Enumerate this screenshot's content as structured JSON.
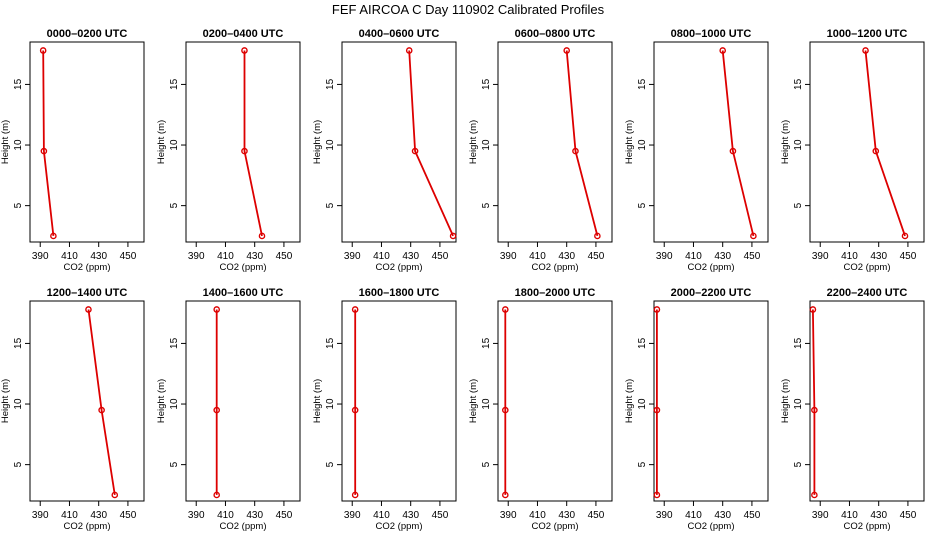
{
  "title": "FEF AIRCOA C  Day 110902  Calibrated Profiles",
  "chart_data": {
    "type": "line",
    "title": "FEF AIRCOA C  Day 110902  Calibrated Profiles",
    "xlabel": "CO2 (ppm)",
    "ylabel": "Height (m)",
    "xlim": [
      383,
      461
    ],
    "ylim": [
      2,
      18.5
    ],
    "xticks": [
      390,
      410,
      430,
      450
    ],
    "yticks": [
      5,
      10,
      15
    ],
    "line_color": "#dd0000",
    "grid": false,
    "panels": [
      {
        "title": "0000–0200 UTC",
        "points": [
          {
            "x": 392,
            "y": 17.8
          },
          {
            "x": 392.5,
            "y": 9.5
          },
          {
            "x": 399,
            "y": 2.5
          }
        ]
      },
      {
        "title": "0200–0400 UTC",
        "points": [
          {
            "x": 423,
            "y": 17.8
          },
          {
            "x": 423,
            "y": 9.5
          },
          {
            "x": 435,
            "y": 2.5
          }
        ]
      },
      {
        "title": "0400–0600 UTC",
        "points": [
          {
            "x": 429,
            "y": 17.8
          },
          {
            "x": 433,
            "y": 9.5
          },
          {
            "x": 459,
            "y": 2.5
          }
        ]
      },
      {
        "title": "0600–0800 UTC",
        "points": [
          {
            "x": 430,
            "y": 17.8
          },
          {
            "x": 436,
            "y": 9.5
          },
          {
            "x": 451,
            "y": 2.5
          }
        ]
      },
      {
        "title": "0800–1000 UTC",
        "points": [
          {
            "x": 430,
            "y": 17.8
          },
          {
            "x": 437,
            "y": 9.5
          },
          {
            "x": 451,
            "y": 2.5
          }
        ]
      },
      {
        "title": "1000–1200 UTC",
        "points": [
          {
            "x": 421,
            "y": 17.8
          },
          {
            "x": 428,
            "y": 9.5
          },
          {
            "x": 448,
            "y": 2.5
          }
        ]
      },
      {
        "title": "1200–1400 UTC",
        "points": [
          {
            "x": 423,
            "y": 17.8
          },
          {
            "x": 432,
            "y": 9.5
          },
          {
            "x": 441,
            "y": 2.5
          }
        ]
      },
      {
        "title": "1400–1600 UTC",
        "points": [
          {
            "x": 404,
            "y": 17.8
          },
          {
            "x": 404,
            "y": 9.5
          },
          {
            "x": 404,
            "y": 2.5
          }
        ]
      },
      {
        "title": "1600–1800 UTC",
        "points": [
          {
            "x": 392,
            "y": 17.8
          },
          {
            "x": 392,
            "y": 9.5
          },
          {
            "x": 392,
            "y": 2.5
          }
        ]
      },
      {
        "title": "1800–2000 UTC",
        "points": [
          {
            "x": 388,
            "y": 17.8
          },
          {
            "x": 388,
            "y": 9.5
          },
          {
            "x": 388,
            "y": 2.5
          }
        ]
      },
      {
        "title": "2000–2200 UTC",
        "points": [
          {
            "x": 385,
            "y": 17.8
          },
          {
            "x": 385,
            "y": 9.5
          },
          {
            "x": 385,
            "y": 2.5
          }
        ]
      },
      {
        "title": "2200–2400 UTC",
        "points": [
          {
            "x": 385,
            "y": 17.8
          },
          {
            "x": 386,
            "y": 9.5
          },
          {
            "x": 386,
            "y": 2.5
          }
        ]
      }
    ]
  }
}
